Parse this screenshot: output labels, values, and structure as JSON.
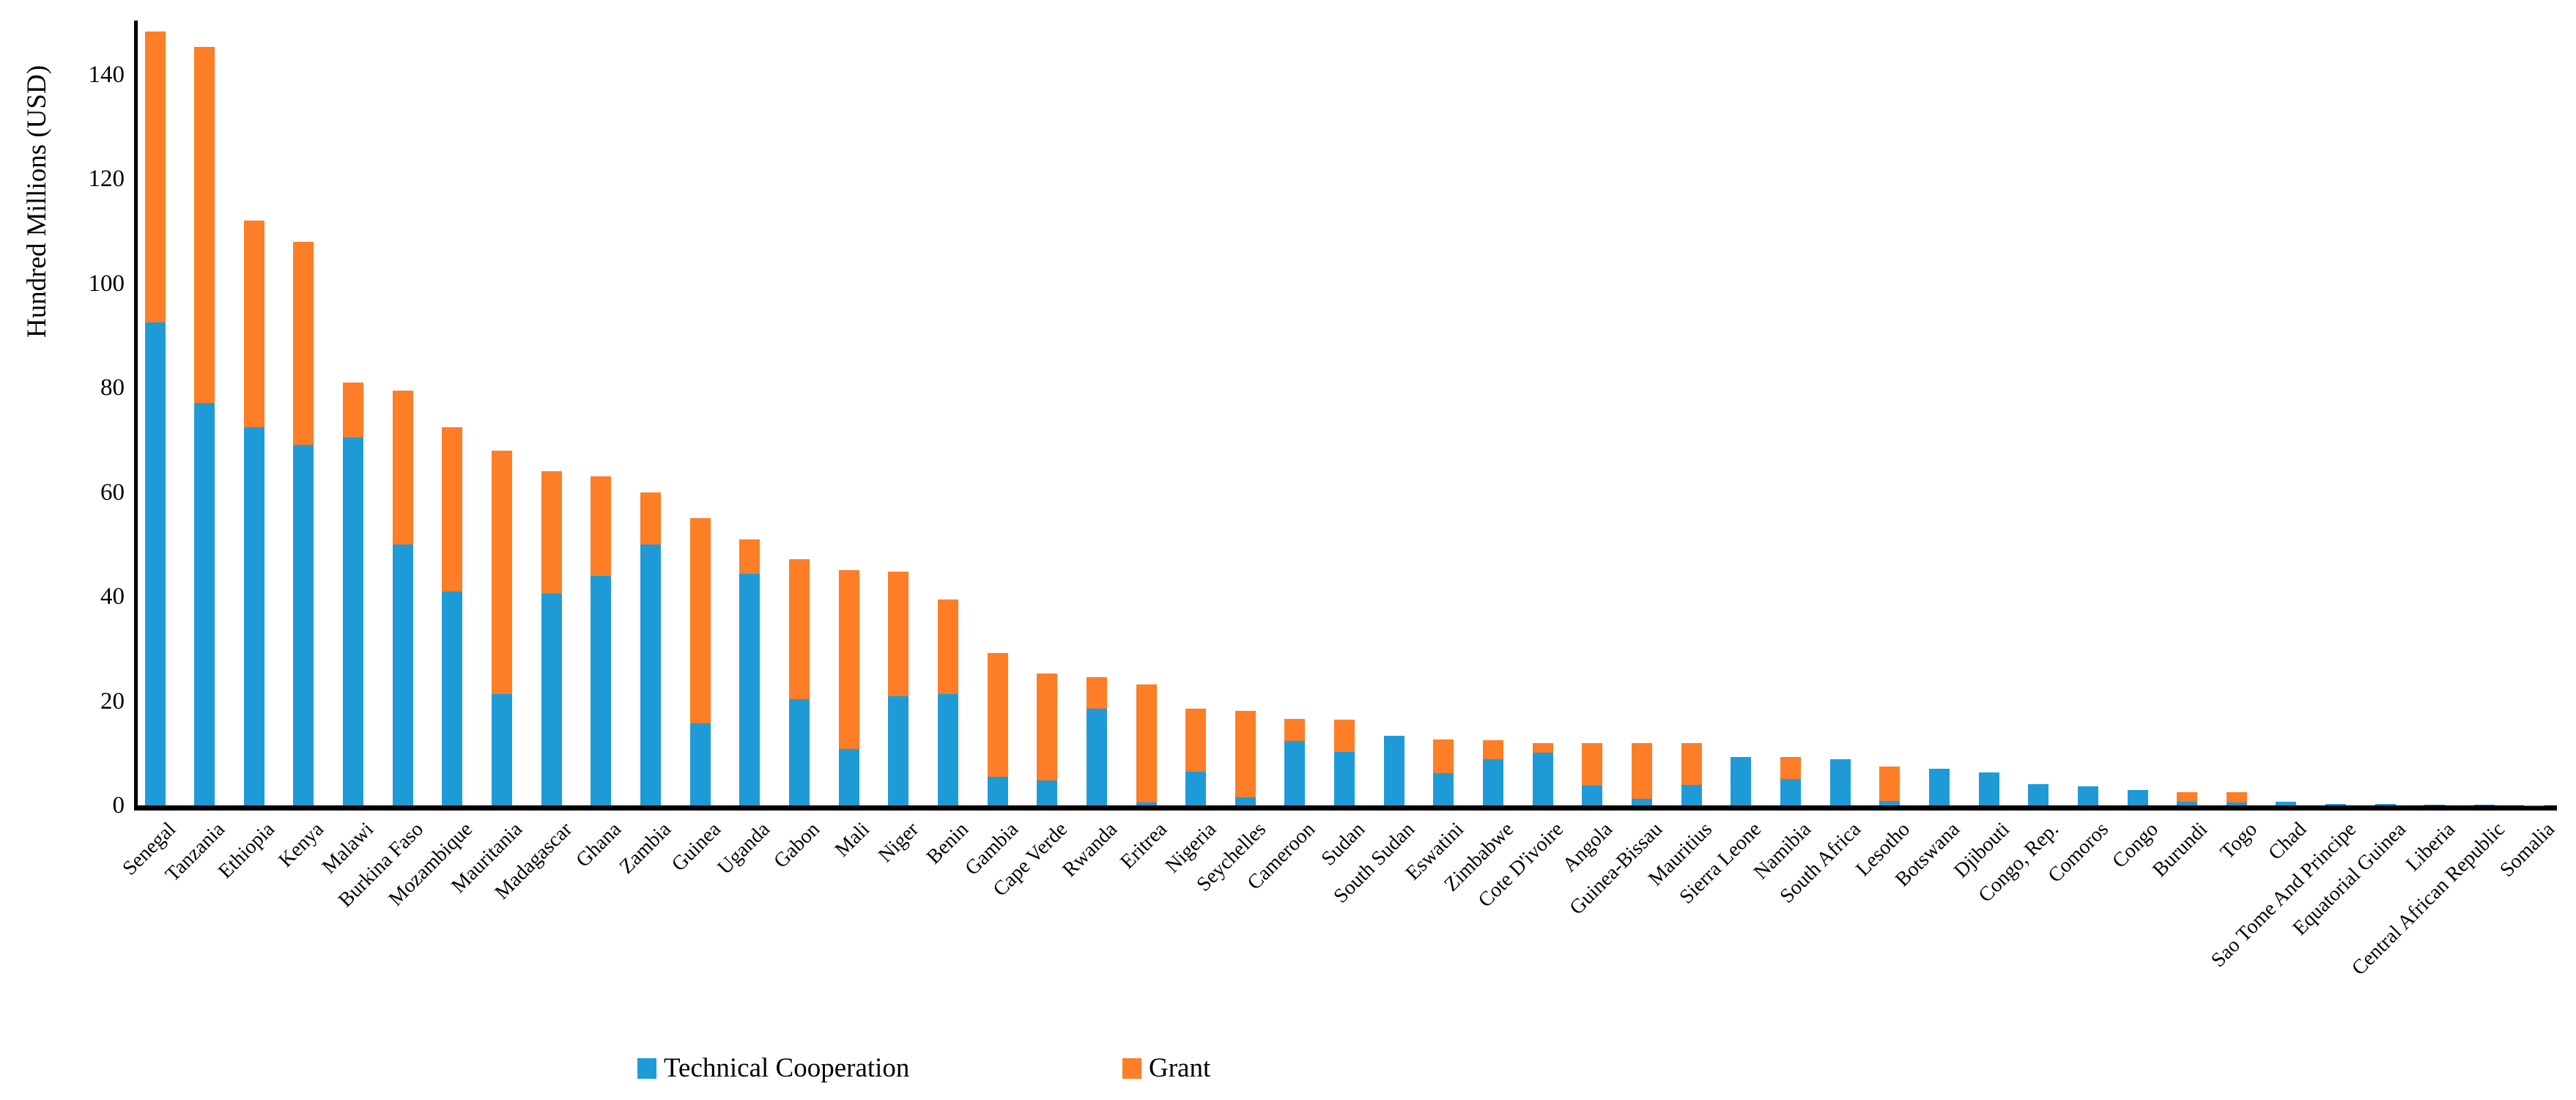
{
  "chart_data": {
    "type": "bar",
    "stacked": true,
    "orientation": "vertical",
    "title": "",
    "xlabel": "",
    "ylabel": "Hundred Millions (USD)",
    "ylim": [
      0,
      150
    ],
    "yticks": [
      0,
      20,
      40,
      60,
      80,
      100,
      120,
      140
    ],
    "grid": false,
    "legend_position": "bottom",
    "categories": [
      "Senegal",
      "Tanzania",
      "Ethiopia",
      "Kenya",
      "Malawi",
      "Burkina Faso",
      "Mozambique",
      "Mauritania",
      "Madagascar",
      "Ghana",
      "Zambia",
      "Guinea",
      "Uganda",
      "Gabon",
      "Mali",
      "Niger",
      "Benin",
      "Gambia",
      "Cape Verde",
      "Rwanda",
      "Eritrea",
      "Nigeria",
      "Seychelles",
      "Cameroon",
      "Sudan",
      "South Sudan",
      "Eswatini",
      "Zimbabwe",
      "Cote D'ivoire",
      "Angola",
      "Guinea-Bissau",
      "Mauritius",
      "Sierra Leone",
      "Namibia",
      "South Africa",
      "Lesotho",
      "Botswana",
      "Djibouti",
      "Congo, Rep.",
      "Comoros",
      "Congo",
      "Burundi",
      "Togo",
      "Chad",
      "Sao Tome And Principe",
      "Equatorial Guinea",
      "Liberia",
      "Central African Republic",
      "Somalia"
    ],
    "series": [
      {
        "name": "Technical Cooperation",
        "color": "#1e9bd7",
        "values": [
          92.5,
          77.0,
          72.5,
          69.0,
          70.5,
          50.0,
          41.0,
          21.3,
          40.5,
          44.0,
          50.0,
          15.7,
          44.3,
          20.3,
          10.8,
          20.9,
          21.4,
          5.5,
          4.8,
          18.5,
          0.6,
          6.4,
          1.5,
          12.4,
          10.3,
          13.3,
          6.2,
          8.9,
          10.1,
          3.8,
          1.3,
          3.9,
          9.3,
          5.1,
          8.8,
          0.9,
          7.0,
          6.3,
          4.1,
          3.6,
          3.0,
          0.7,
          0.5,
          0.7,
          0.3,
          0.3,
          0.2,
          0.1,
          0.05
        ]
      },
      {
        "name": "Grant",
        "color": "#fd7e26",
        "values": [
          55.8,
          68.3,
          39.5,
          39.0,
          10.5,
          29.5,
          31.5,
          46.7,
          23.5,
          19.0,
          10.0,
          39.3,
          6.7,
          26.9,
          34.2,
          23.9,
          18.1,
          23.7,
          20.5,
          6.1,
          22.5,
          12.1,
          16.6,
          4.1,
          6.1,
          0,
          6.4,
          3.6,
          1.9,
          8.1,
          10.6,
          8.1,
          0,
          4.2,
          0,
          6.6,
          0,
          0,
          0,
          0,
          0,
          1.8,
          2.0,
          0,
          0,
          0,
          0,
          0,
          0
        ]
      }
    ]
  },
  "axis": {
    "y_title": "Hundred Millions (USD)",
    "y_tick_labels": [
      "0",
      "20",
      "40",
      "60",
      "80",
      "100",
      "120",
      "140"
    ]
  },
  "legend": {
    "items": [
      {
        "label": "Technical Cooperation",
        "color": "#1e9bd7",
        "swatch": "blue-square-icon"
      },
      {
        "label": "Grant",
        "color": "#fd7e26",
        "swatch": "orange-square-icon"
      }
    ]
  }
}
